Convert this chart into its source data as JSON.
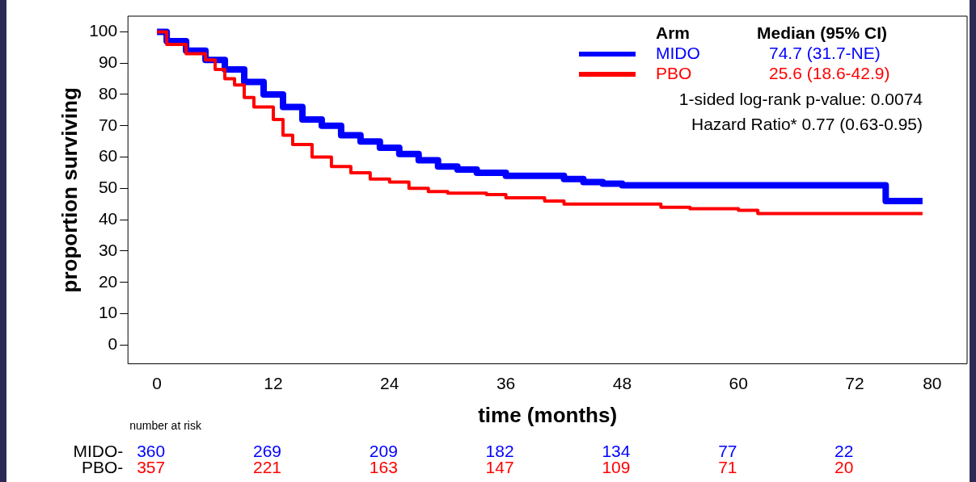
{
  "chart_data": {
    "type": "step",
    "xlabel": "time (months)",
    "ylabel": "proportion surviving",
    "legend_title": "Arm",
    "legend": "top right",
    "grid": false,
    "xlim": [
      -3,
      83.6
    ],
    "xticks": [
      0,
      12,
      24,
      36,
      48,
      60,
      72,
      80
    ],
    "ylim": [
      -6,
      105
    ],
    "yticks": [
      0,
      10,
      20,
      30,
      40,
      50,
      60,
      70,
      80,
      90,
      100
    ],
    "series": [
      {
        "name": "MIDO",
        "color": "#0000ff",
        "x": [
          0,
          1,
          3,
          5,
          7,
          9,
          11,
          13,
          15,
          17,
          19,
          21,
          23,
          25,
          27,
          29,
          31,
          33,
          36,
          40,
          42,
          44,
          46,
          48,
          55,
          60,
          70,
          75,
          75.2,
          79
        ],
        "values": [
          100,
          97,
          94,
          91,
          88,
          84,
          80,
          76,
          72,
          70,
          67,
          65,
          63,
          61,
          59,
          57,
          56,
          55,
          54,
          54,
          53,
          52,
          51.5,
          51,
          51,
          51,
          51,
          51,
          46,
          46
        ]
      },
      {
        "name": "PBO",
        "color": "#ff0000",
        "x": [
          0,
          1,
          3,
          5,
          6,
          7,
          8,
          9,
          10,
          12,
          13,
          14,
          16,
          18,
          20,
          22,
          24,
          26,
          28,
          30,
          34,
          36,
          40,
          42,
          48,
          52,
          55,
          60,
          62,
          79
        ],
        "values": [
          100,
          96,
          93,
          91,
          88,
          85,
          83,
          79,
          76,
          72,
          67,
          64,
          60,
          57,
          55,
          53,
          52,
          50,
          49,
          48.5,
          48,
          47,
          46,
          45,
          45,
          44,
          43.5,
          43,
          42,
          42
        ]
      }
    ],
    "annotations": [
      "Median (95% CI)",
      "74.7 (31.7-NE)",
      "25.6 (18.6-42.9)",
      "1-sided log-rank p-value: 0.0074",
      "Hazard Ratio* 0.77 (0.63-0.95)",
      "number at risk",
      "MIDO-",
      "360",
      "269",
      "209",
      "182",
      "134",
      "77",
      "22",
      "PBO-",
      "357",
      "221",
      "163",
      "147",
      "109",
      "71",
      "20"
    ]
  }
}
